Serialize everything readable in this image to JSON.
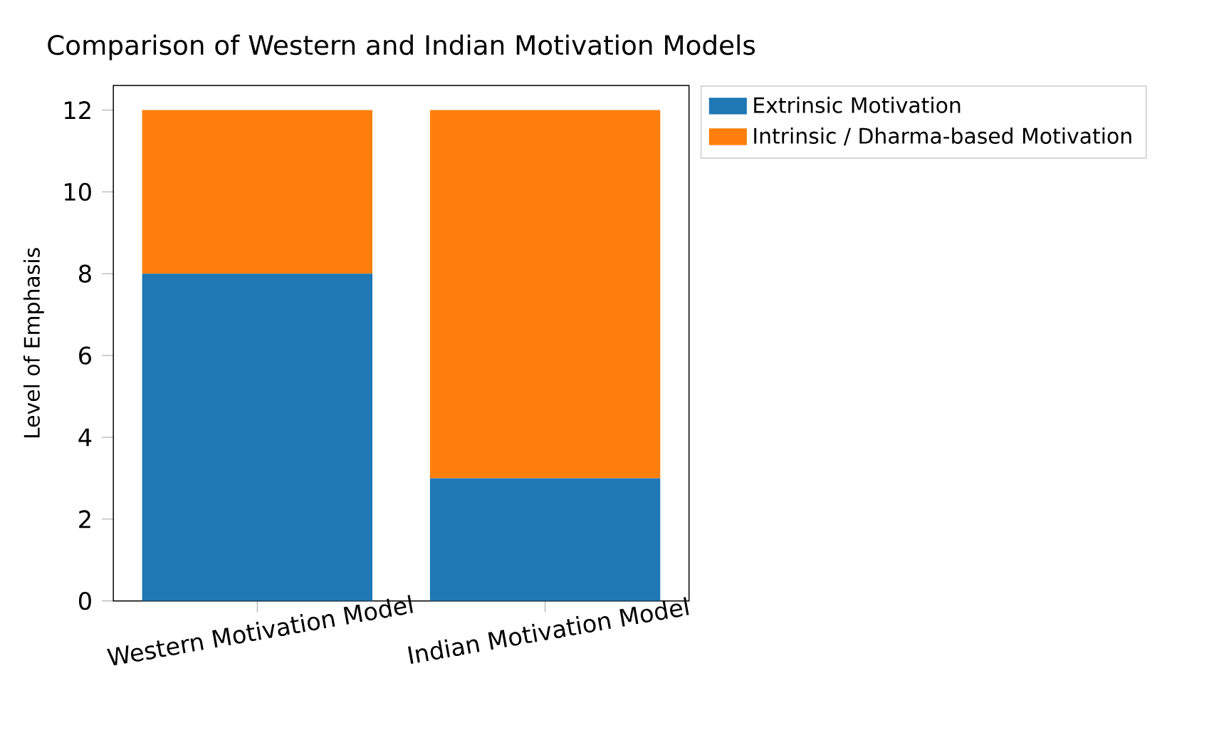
{
  "chart_data": {
    "type": "bar",
    "title": "Comparison of Western and Indian Motivation Models",
    "ylabel": "Level of Emphasis",
    "categories": [
      "Western Motivation Model",
      "Indian Motivation Model"
    ],
    "series": [
      {
        "name": "Extrinsic Motivation",
        "color": "#1f77b4",
        "values": [
          8,
          3
        ]
      },
      {
        "name": "Intrinsic / Dharma-based Motivation",
        "color": "#ff7f0e",
        "values": [
          4,
          9
        ]
      }
    ],
    "stacked": true,
    "ylim": [
      0,
      12.6
    ],
    "yticks": [
      0,
      2,
      4,
      6,
      8,
      10,
      12
    ],
    "legend": "top right"
  }
}
